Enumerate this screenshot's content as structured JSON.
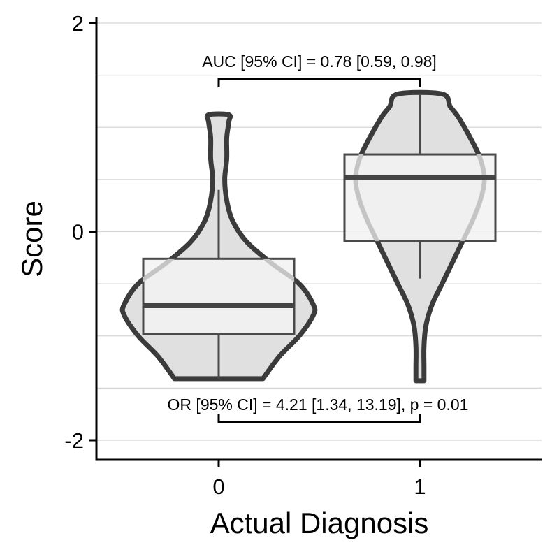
{
  "chart_data": {
    "type": "violin-box",
    "xlabel": "Actual Diagnosis",
    "ylabel": "Score",
    "categories": [
      "0",
      "1"
    ],
    "ylim": [
      -2.2,
      2.05
    ],
    "yticks": [
      -2,
      0,
      2
    ],
    "ytick_labels": [
      "-2",
      "0",
      "2"
    ],
    "grid": "horizontal",
    "groups": [
      {
        "category": "0",
        "box": {
          "q1": -0.98,
          "median": -0.71,
          "q3": -0.26,
          "whisker_low": -1.41,
          "whisker_high": 0.4
        },
        "violin": {
          "y": [
            -1.41,
            -1.2,
            -1.0,
            -0.8,
            -0.7,
            -0.5,
            -0.3,
            -0.1,
            0.1,
            0.3,
            0.5,
            0.7,
            0.9,
            1.05,
            1.12
          ],
          "width": [
            0.22,
            0.3,
            0.4,
            0.47,
            0.47,
            0.4,
            0.26,
            0.14,
            0.07,
            0.04,
            0.03,
            0.04,
            0.04,
            0.05,
            0.05
          ]
        }
      },
      {
        "category": "1",
        "box": {
          "q1": -0.09,
          "median": 0.52,
          "q3": 0.74,
          "whisker_low": -0.45,
          "whisker_high": 1.32
        },
        "violin": {
          "y": [
            -1.43,
            -1.3,
            -1.1,
            -0.9,
            -0.7,
            -0.5,
            -0.3,
            -0.1,
            0.1,
            0.3,
            0.5,
            0.7,
            0.9,
            1.1,
            1.2,
            1.32
          ],
          "width": [
            0.02,
            0.02,
            0.02,
            0.03,
            0.06,
            0.11,
            0.16,
            0.21,
            0.26,
            0.3,
            0.32,
            0.3,
            0.25,
            0.19,
            0.15,
            0.11
          ]
        }
      }
    ],
    "annotations": [
      {
        "text": "AUC [95% CI] = 0.78 [0.59, 0.98]",
        "position": "top"
      },
      {
        "text": "OR [95% CI] = 4.21 [1.34, 13.19], p = 0.01",
        "position": "bottom"
      }
    ],
    "colors": {
      "violin_fill": "#e0e0e0",
      "violin_outline": "#3b3b3b",
      "box_fill": "#f2f2f2",
      "box_outline": "#4a4a4a",
      "median": "#444444",
      "density_core": "#c4c4c4",
      "grid": "#d6d6d6"
    }
  }
}
